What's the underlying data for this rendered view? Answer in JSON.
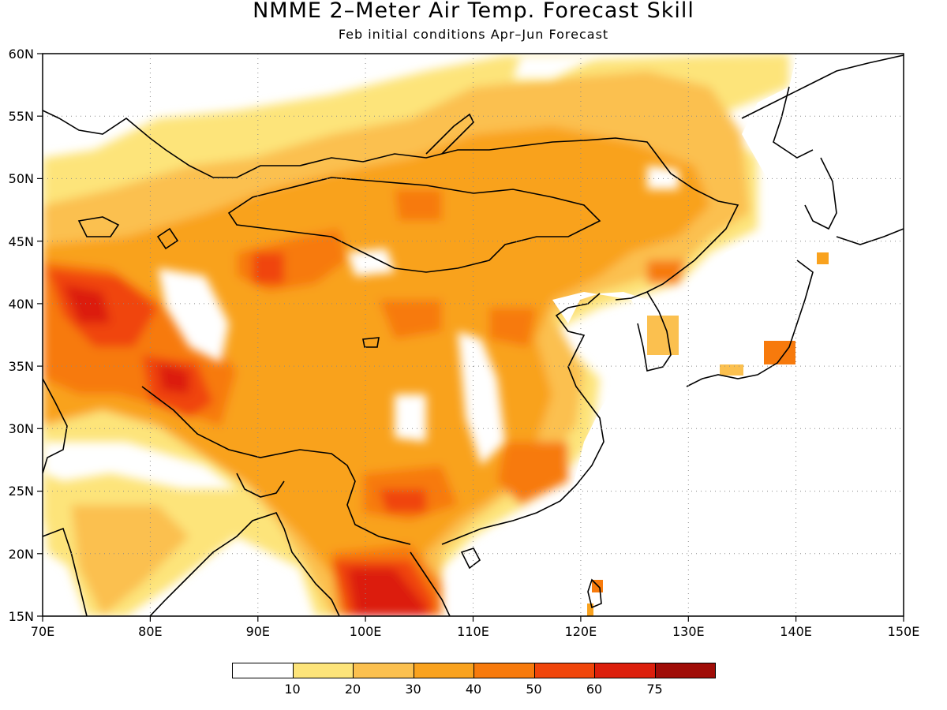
{
  "title": "NMME 2–Meter Air Temp. Forecast Skill",
  "subtitle": "Feb initial conditions   Apr–Jun Forecast",
  "map": {
    "lon_range": [
      70,
      150
    ],
    "lat_range": [
      15,
      60
    ],
    "lon_ticks": [
      "70E",
      "80E",
      "90E",
      "100E",
      "110E",
      "120E",
      "130E",
      "140E",
      "150E"
    ],
    "lat_ticks": [
      "15N",
      "20N",
      "25N",
      "30N",
      "35N",
      "40N",
      "45N",
      "50N",
      "55N",
      "60N"
    ],
    "gridlines": "dotted"
  },
  "legend": {
    "colors": [
      "#ffffff",
      "#fde47a",
      "#fbc04f",
      "#f9a21e",
      "#f77a0c",
      "#f0450a",
      "#dc1f0c",
      "#a00d08"
    ],
    "labels": [
      "10",
      "20",
      "30",
      "40",
      "50",
      "60",
      "75"
    ]
  }
}
